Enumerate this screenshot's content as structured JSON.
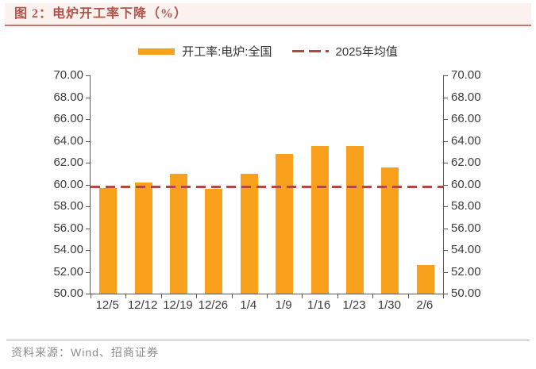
{
  "header": {
    "title": "图 2：电炉开工率下降（%）"
  },
  "legend": {
    "series_label": "开工率:电炉:全国",
    "mean_label": "2025年均值"
  },
  "chart_data": {
    "type": "bar",
    "title": "电炉开工率下降（%）",
    "categories": [
      "12/5",
      "12/12",
      "12/19",
      "12/26",
      "1/4",
      "1/9",
      "1/16",
      "1/23",
      "1/30",
      "2/6"
    ],
    "series": [
      {
        "name": "开工率:电炉:全国",
        "values": [
          59.7,
          60.2,
          61.0,
          59.6,
          61.0,
          62.8,
          63.5,
          63.5,
          61.6,
          52.6
        ]
      }
    ],
    "mean_line": {
      "name": "2025年均值",
      "value": 59.8
    },
    "xlabel": "",
    "ylabel": "",
    "ylim": [
      50,
      70
    ],
    "ytick_step": 2,
    "ytick_labels": [
      "70.00",
      "68.00",
      "66.00",
      "64.00",
      "62.00",
      "60.00",
      "58.00",
      "56.00",
      "54.00",
      "52.00",
      "50.00"
    ],
    "grid": false,
    "legend_position": "top",
    "dual_axis_labels": true,
    "bar_color": "#F9A01C",
    "mean_color": "#B04A40"
  },
  "footer": {
    "source": "资料来源：Wind、招商证券"
  },
  "colors": {
    "title": "#B2544C",
    "header_bg": "#FBF1EE",
    "underline": "#C8766C",
    "axis": "#595959",
    "text": "#3B3B3B",
    "source": "#8C8C8C"
  }
}
